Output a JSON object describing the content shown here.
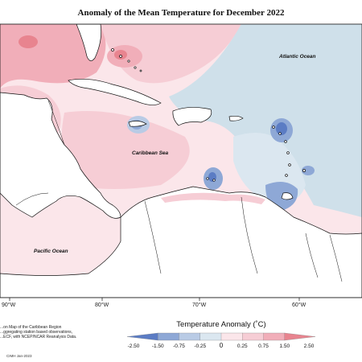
{
  "title": "Anomaly of the Mean Temperature for December 2022",
  "map": {
    "type": "choropleth",
    "ocean_labels": [
      "Atlantic Ocean",
      "Caribbean Sea",
      "Pacific Ocean"
    ],
    "lon_ticks": [
      "90°W",
      "80°W",
      "70°W",
      "60°W"
    ],
    "colors": {
      "neg_strong": "#5b7cc4",
      "neg_mid": "#8ea8d6",
      "neg_light": "#b9cbe5",
      "neutral_cool": "#cfe0ea",
      "neutral_warm": "#fbe6ea",
      "pos_light": "#f6cdd5",
      "pos_mid": "#f1aeb9",
      "pos_strong": "#e8848f",
      "land": "#ffffff"
    }
  },
  "notes": [
    "...on Map of the Caribbean Region",
    "...ggregating station based observations,",
    "...ECF, with NCEP/NCAR Reanalysis Data."
  ],
  "credit": "CIMH Jan-2023",
  "colorbar": {
    "title": "Temperature Anomaly (˚C)",
    "labels": [
      "-2.50",
      "-1.50",
      "-0.75",
      "-0.25",
      "0",
      "0.25",
      "0.75",
      "1.50",
      "2.50"
    ],
    "colors": [
      "#5b7cc4",
      "#8ea8d6",
      "#b9cbe5",
      "#dbe7f0",
      "#fbe6ea",
      "#f6cdd5",
      "#f1aeb9",
      "#e8848f"
    ]
  }
}
